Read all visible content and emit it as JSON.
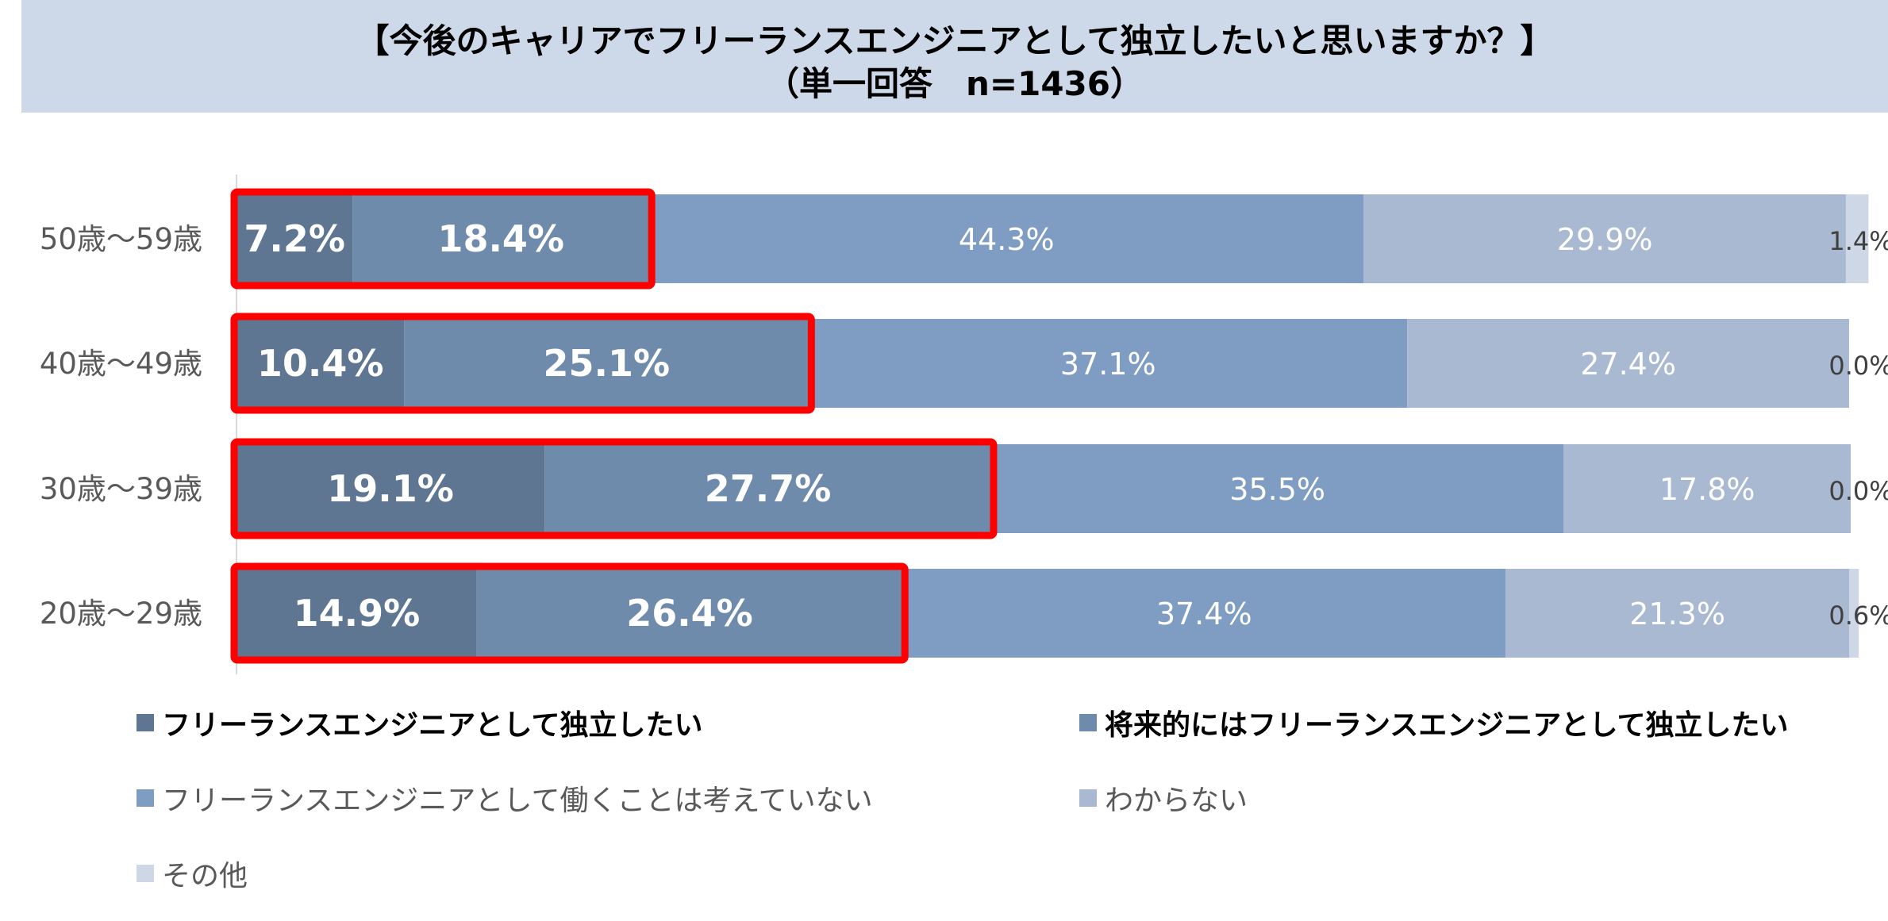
{
  "title": {
    "line1": "【今後のキャリアでフリーランスエンジニアとして独立したいと思いますか？】",
    "line2": "（単一回答　n=1436）"
  },
  "chart_data": {
    "type": "bar",
    "orientation": "horizontal",
    "stacked": true,
    "percent_stacked": true,
    "categories": [
      "50歳～59歳",
      "40歳～49歳",
      "30歳～39歳",
      "20歳～29歳"
    ],
    "series": [
      {
        "name": "フリーランスエンジニアとして独立したい",
        "values": [
          7.2,
          10.4,
          19.1,
          14.9
        ],
        "labels": [
          "7.2%",
          "10.4%",
          "19.1%",
          "14.9%"
        ],
        "color": "#5f7693"
      },
      {
        "name": "将来的にはフリーランスエンジニアとして独立したい",
        "values": [
          18.4,
          25.1,
          27.7,
          26.4
        ],
        "labels": [
          "18.4%",
          "25.1%",
          "27.7%",
          "26.4%"
        ],
        "color": "#6f8bab"
      },
      {
        "name": "フリーランスエンジニアとして働くことは考えていない",
        "values": [
          44.3,
          37.1,
          35.5,
          37.4
        ],
        "labels": [
          "44.3%",
          "37.1%",
          "35.5%",
          "37.4%"
        ],
        "color": "#7f9dc2"
      },
      {
        "name": "わからない",
        "values": [
          29.9,
          27.4,
          17.8,
          21.3
        ],
        "labels": [
          "29.9%",
          "27.4%",
          "17.8%",
          "21.3%"
        ],
        "color": "#a9b9d2"
      },
      {
        "name": "その他",
        "values": [
          1.4,
          0.0,
          0.0,
          0.6
        ],
        "labels": [
          "1.4%",
          "0.0%",
          "0.0%",
          "0.6%"
        ],
        "color": "#cdd7e6"
      }
    ],
    "xlim": [
      0,
      100
    ],
    "highlight": {
      "series_covered": 2,
      "color": "#ff0000"
    },
    "legend_position": "bottom"
  }
}
